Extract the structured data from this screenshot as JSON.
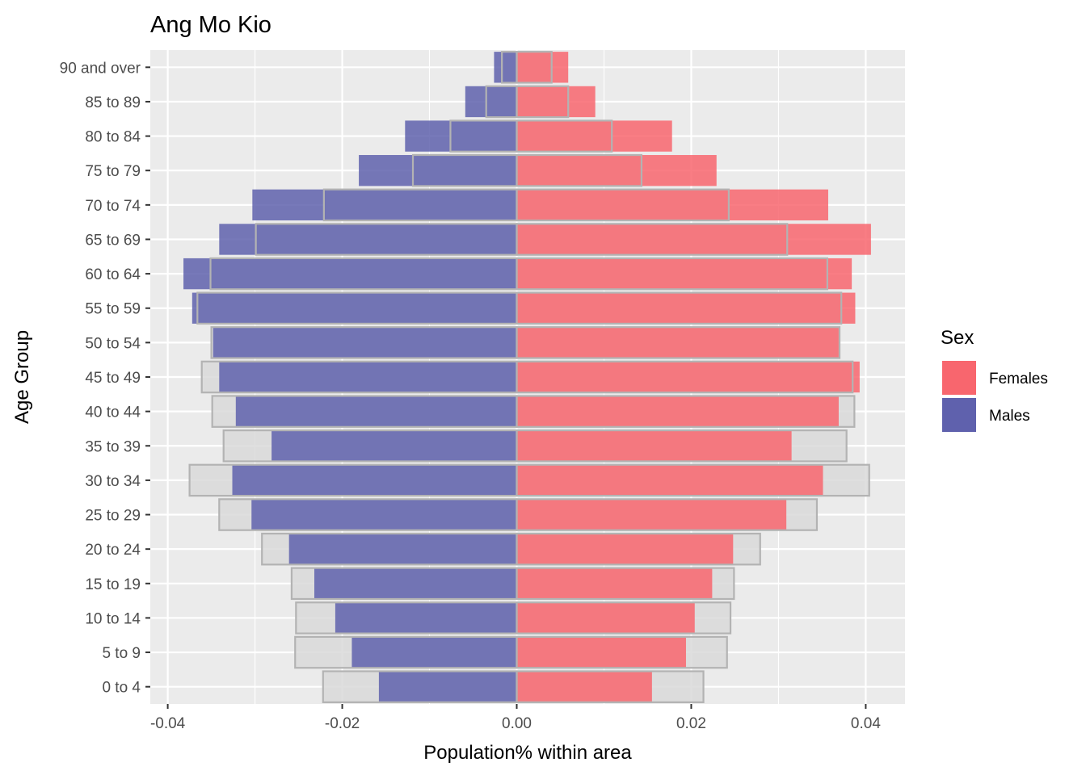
{
  "chart_data": {
    "type": "bar",
    "orientation": "horizontal",
    "title": "Ang Mo Kio",
    "xlabel": "Population% within area",
    "ylabel": "Age Group",
    "xlim": [
      -0.042,
      0.0445
    ],
    "x_ticks": [
      -0.04,
      -0.02,
      0.0,
      0.02,
      0.04
    ],
    "x_tick_labels": [
      "-0.04",
      "-0.02",
      "0.00",
      "0.02",
      "0.04"
    ],
    "grid": true,
    "legend": {
      "title": "Sex",
      "placement": "right",
      "entries": [
        {
          "label": "Females",
          "color": "#F8766D"
        },
        {
          "label": "Males",
          "color": "#6063AE"
        }
      ]
    },
    "categories": [
      "0 to 4",
      "5 to 9",
      "10 to 14",
      "15 to 19",
      "20 to 24",
      "25 to 29",
      "30 to 34",
      "35 to 39",
      "40 to 44",
      "45 to 49",
      "50 to 54",
      "55 to 59",
      "60 to 64",
      "65 to 69",
      "70 to 74",
      "75 to 79",
      "80 to 84",
      "85 to 89",
      "90 and over"
    ],
    "series": [
      {
        "name": "Females",
        "color": "#F8666E",
        "values": [
          0.0155,
          0.0194,
          0.0204,
          0.0224,
          0.0248,
          0.0309,
          0.0351,
          0.0315,
          0.0369,
          0.0393,
          0.0369,
          0.0388,
          0.0384,
          0.0406,
          0.0357,
          0.0229,
          0.0178,
          0.009,
          0.0059
        ]
      },
      {
        "name": "Males",
        "color": "#5F61AD",
        "values": [
          -0.0158,
          -0.0189,
          -0.0208,
          -0.0232,
          -0.0261,
          -0.0304,
          -0.0326,
          -0.0281,
          -0.0322,
          -0.0341,
          -0.0348,
          -0.0372,
          -0.0382,
          -0.0341,
          -0.0303,
          -0.0181,
          -0.0128,
          -0.0059,
          -0.0026
        ]
      },
      {
        "role": "comparison",
        "values_female": [
          0.0214,
          0.0241,
          0.0245,
          0.0249,
          0.0279,
          0.0344,
          0.0404,
          0.0378,
          0.0387,
          0.0385,
          0.037,
          0.0372,
          0.0356,
          0.031,
          0.0243,
          0.0143,
          0.0109,
          0.0059,
          0.004
        ],
        "values_male": [
          -0.0222,
          -0.0254,
          -0.0253,
          -0.0258,
          -0.0292,
          -0.0341,
          -0.0375,
          -0.0336,
          -0.0349,
          -0.0361,
          -0.035,
          -0.0366,
          -0.0351,
          -0.0299,
          -0.0221,
          -0.0119,
          -0.0076,
          -0.0035,
          -0.0017
        ]
      }
    ],
    "colors": {
      "panel_bg": "#EBEBEB",
      "grid": "#FFFFFF",
      "overlay_fill": "#D9D9D9",
      "overlay_stroke": "#B3B3B3"
    }
  }
}
